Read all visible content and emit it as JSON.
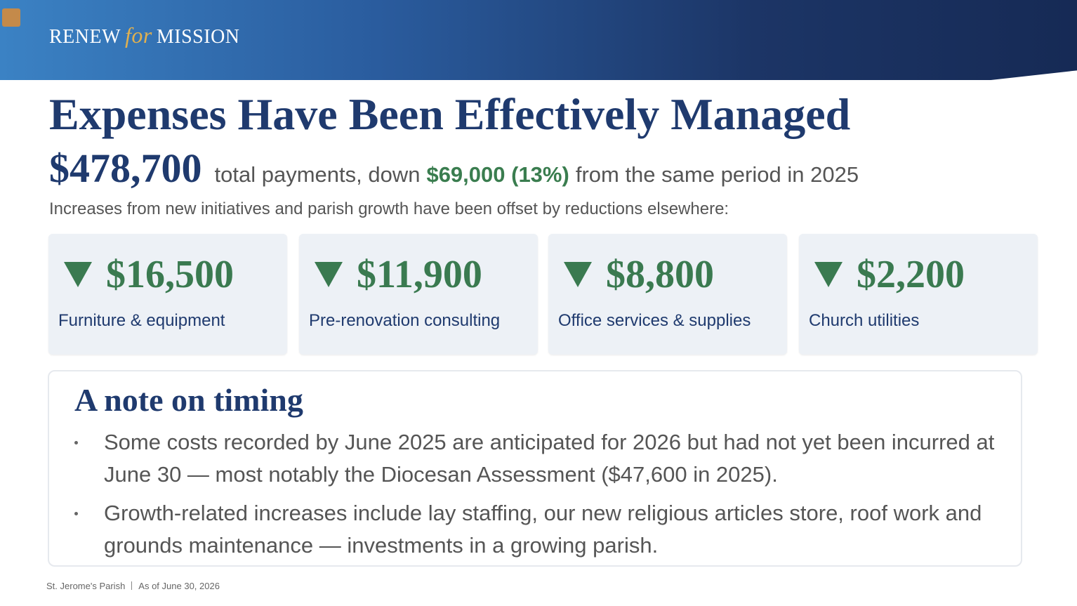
{
  "header": {
    "brand": [
      "RENEW",
      "for",
      "MISSION"
    ]
  },
  "title": "Expenses Have Been Effectively Managed",
  "summary": {
    "total": "$478,700",
    "text_before": "total payments, down",
    "highlight": "$69,000 (13%)",
    "text_after": "from the same period in 2025"
  },
  "subtitle": "Increases from new initiatives and parish growth have been offset by reductions elsewhere:",
  "cards": [
    {
      "amount": "$16,500",
      "label": "Furniture & equipment"
    },
    {
      "amount": "$11,900",
      "label": "Pre-renovation consulting"
    },
    {
      "amount": "$8,800",
      "label": "Office services & supplies"
    },
    {
      "amount": "$2,200",
      "label": "Church utilities"
    }
  ],
  "note": {
    "title": "A note on timing",
    "bullets": [
      "Some costs recorded by June 2025 are anticipated for 2026 but had not yet been incurred at June 30 — most notably the Diocesan Assessment ($47,600 in 2025).",
      "Growth-related increases include lay staffing, our new religious articles store, roof work and grounds maintenance — investments in a growing parish."
    ]
  },
  "footer": {
    "left": "St. Jerome's Parish",
    "right": "As of June 30, 2026"
  }
}
